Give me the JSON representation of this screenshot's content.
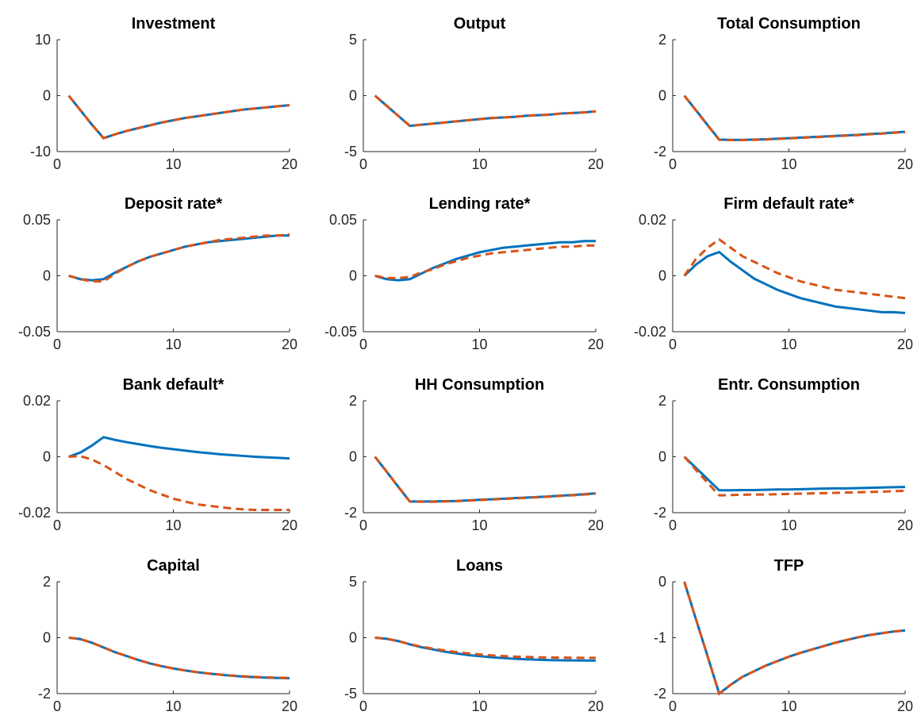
{
  "chart_data": [
    {
      "type": "line",
      "title": "Investment",
      "x": [
        1,
        2,
        3,
        4,
        5,
        6,
        7,
        8,
        9,
        10,
        11,
        12,
        13,
        14,
        15,
        16,
        17,
        18,
        19,
        20
      ],
      "xlim": [
        0,
        20
      ],
      "xticks": [
        0,
        10,
        20
      ],
      "ylim": [
        -10,
        10
      ],
      "yticks": [
        -10,
        0,
        10
      ],
      "series": [
        {
          "color": "#0072bd",
          "line_style": "solid",
          "values": [
            0,
            -2.6,
            -5.2,
            -7.6,
            -6.9,
            -6.3,
            -5.8,
            -5.3,
            -4.8,
            -4.4,
            -4.0,
            -3.7,
            -3.4,
            -3.1,
            -2.8,
            -2.5,
            -2.3,
            -2.1,
            -1.9,
            -1.7
          ]
        },
        {
          "color": "#d95319",
          "line_style": "dashed",
          "values": [
            0,
            -2.6,
            -5.2,
            -7.6,
            -6.9,
            -6.3,
            -5.8,
            -5.3,
            -4.8,
            -4.4,
            -4.0,
            -3.7,
            -3.4,
            -3.1,
            -2.8,
            -2.5,
            -2.3,
            -2.1,
            -1.9,
            -1.7
          ]
        }
      ]
    },
    {
      "type": "line",
      "title": "Output",
      "x": [
        1,
        2,
        3,
        4,
        5,
        6,
        7,
        8,
        9,
        10,
        11,
        12,
        13,
        14,
        15,
        16,
        17,
        18,
        19,
        20
      ],
      "xlim": [
        0,
        20
      ],
      "xticks": [
        0,
        10,
        20
      ],
      "ylim": [
        -5,
        5
      ],
      "yticks": [
        -5,
        0,
        5
      ],
      "series": [
        {
          "color": "#0072bd",
          "line_style": "solid",
          "values": [
            0,
            -0.9,
            -1.8,
            -2.7,
            -2.6,
            -2.5,
            -2.4,
            -2.3,
            -2.2,
            -2.1,
            -2.0,
            -1.95,
            -1.9,
            -1.8,
            -1.75,
            -1.7,
            -1.6,
            -1.55,
            -1.5,
            -1.4
          ]
        },
        {
          "color": "#d95319",
          "line_style": "dashed",
          "values": [
            0,
            -0.9,
            -1.8,
            -2.7,
            -2.6,
            -2.5,
            -2.4,
            -2.3,
            -2.2,
            -2.1,
            -2.0,
            -1.95,
            -1.9,
            -1.8,
            -1.75,
            -1.7,
            -1.6,
            -1.55,
            -1.5,
            -1.4
          ]
        }
      ]
    },
    {
      "type": "line",
      "title": "Total Consumption",
      "x": [
        1,
        2,
        3,
        4,
        5,
        6,
        7,
        8,
        9,
        10,
        11,
        12,
        13,
        14,
        15,
        16,
        17,
        18,
        19,
        20
      ],
      "xlim": [
        0,
        20
      ],
      "xticks": [
        0,
        10,
        20
      ],
      "ylim": [
        -2,
        2
      ],
      "yticks": [
        -2,
        0,
        2
      ],
      "series": [
        {
          "color": "#0072bd",
          "line_style": "solid",
          "values": [
            0,
            -0.52,
            -1.05,
            -1.57,
            -1.58,
            -1.58,
            -1.57,
            -1.56,
            -1.54,
            -1.52,
            -1.5,
            -1.48,
            -1.46,
            -1.44,
            -1.42,
            -1.4,
            -1.37,
            -1.35,
            -1.32,
            -1.29
          ]
        },
        {
          "color": "#d95319",
          "line_style": "dashed",
          "values": [
            0,
            -0.53,
            -1.06,
            -1.58,
            -1.59,
            -1.59,
            -1.58,
            -1.57,
            -1.55,
            -1.53,
            -1.51,
            -1.49,
            -1.47,
            -1.45,
            -1.43,
            -1.41,
            -1.38,
            -1.36,
            -1.33,
            -1.3
          ]
        }
      ]
    },
    {
      "type": "line",
      "title": "Deposit rate*",
      "x": [
        1,
        2,
        3,
        4,
        5,
        6,
        7,
        8,
        9,
        10,
        11,
        12,
        13,
        14,
        15,
        16,
        17,
        18,
        19,
        20
      ],
      "xlim": [
        0,
        20
      ],
      "xticks": [
        0,
        10,
        20
      ],
      "ylim": [
        -0.05,
        0.05
      ],
      "yticks": [
        -0.05,
        0,
        0.05
      ],
      "series": [
        {
          "color": "#0072bd",
          "line_style": "solid",
          "values": [
            0,
            -0.003,
            -0.004,
            -0.003,
            0.003,
            0.008,
            0.013,
            0.017,
            0.02,
            0.023,
            0.026,
            0.028,
            0.03,
            0.031,
            0.032,
            0.033,
            0.034,
            0.035,
            0.036,
            0.036
          ]
        },
        {
          "color": "#d95319",
          "line_style": "dashed",
          "values": [
            0,
            -0.003,
            -0.005,
            -0.005,
            0.002,
            0.008,
            0.013,
            0.017,
            0.02,
            0.023,
            0.026,
            0.028,
            0.03,
            0.032,
            0.033,
            0.034,
            0.035,
            0.036,
            0.036,
            0.037
          ]
        }
      ]
    },
    {
      "type": "line",
      "title": "Lending rate*",
      "x": [
        1,
        2,
        3,
        4,
        5,
        6,
        7,
        8,
        9,
        10,
        11,
        12,
        13,
        14,
        15,
        16,
        17,
        18,
        19,
        20
      ],
      "xlim": [
        0,
        20
      ],
      "xticks": [
        0,
        10,
        20
      ],
      "ylim": [
        -0.05,
        0.05
      ],
      "yticks": [
        -0.05,
        0,
        0.05
      ],
      "series": [
        {
          "color": "#0072bd",
          "line_style": "solid",
          "values": [
            0,
            -0.003,
            -0.004,
            -0.003,
            0.002,
            0.007,
            0.011,
            0.015,
            0.018,
            0.021,
            0.023,
            0.025,
            0.026,
            0.027,
            0.028,
            0.029,
            0.03,
            0.03,
            0.031,
            0.031
          ]
        },
        {
          "color": "#d95319",
          "line_style": "dashed",
          "values": [
            0,
            -0.002,
            -0.002,
            -0.001,
            0.003,
            0.006,
            0.01,
            0.013,
            0.016,
            0.018,
            0.02,
            0.021,
            0.022,
            0.023,
            0.024,
            0.025,
            0.026,
            0.026,
            0.027,
            0.027
          ]
        }
      ]
    },
    {
      "type": "line",
      "title": "Firm default rate*",
      "x": [
        1,
        2,
        3,
        4,
        5,
        6,
        7,
        8,
        9,
        10,
        11,
        12,
        13,
        14,
        15,
        16,
        17,
        18,
        19,
        20
      ],
      "xlim": [
        0,
        20
      ],
      "xticks": [
        0,
        10,
        20
      ],
      "ylim": [
        -0.02,
        0.02
      ],
      "yticks": [
        -0.02,
        0,
        0.02
      ],
      "series": [
        {
          "color": "#0072bd",
          "line_style": "solid",
          "values": [
            0,
            0.004,
            0.007,
            0.0085,
            0.005,
            0.002,
            -0.001,
            -0.003,
            -0.005,
            -0.0065,
            -0.008,
            -0.009,
            -0.01,
            -0.011,
            -0.0115,
            -0.012,
            -0.0125,
            -0.013,
            -0.013,
            -0.0133
          ]
        },
        {
          "color": "#d95319",
          "line_style": "dashed",
          "values": [
            0,
            0.006,
            0.01,
            0.013,
            0.01,
            0.007,
            0.005,
            0.003,
            0.001,
            -0.0005,
            -0.002,
            -0.003,
            -0.004,
            -0.005,
            -0.0055,
            -0.006,
            -0.0065,
            -0.007,
            -0.0075,
            -0.008
          ]
        }
      ]
    },
    {
      "type": "line",
      "title": "Bank default*",
      "x": [
        1,
        2,
        3,
        4,
        5,
        6,
        7,
        8,
        9,
        10,
        11,
        12,
        13,
        14,
        15,
        16,
        17,
        18,
        19,
        20
      ],
      "xlim": [
        0,
        20
      ],
      "xticks": [
        0,
        10,
        20
      ],
      "ylim": [
        -0.02,
        0.02
      ],
      "yticks": [
        -0.02,
        0,
        0.02
      ],
      "series": [
        {
          "color": "#0072bd",
          "line_style": "solid",
          "values": [
            0,
            0.0015,
            0.004,
            0.007,
            0.006,
            0.0052,
            0.0045,
            0.0038,
            0.0032,
            0.0027,
            0.0022,
            0.0017,
            0.0013,
            0.0009,
            0.0006,
            0.0003,
            0,
            -0.0002,
            -0.0004,
            -0.0006
          ]
        },
        {
          "color": "#d95319",
          "line_style": "dashed",
          "values": [
            0,
            0.0002,
            -0.001,
            -0.003,
            -0.0055,
            -0.008,
            -0.01,
            -0.012,
            -0.0135,
            -0.015,
            -0.016,
            -0.017,
            -0.0175,
            -0.018,
            -0.0185,
            -0.0188,
            -0.019,
            -0.019,
            -0.019,
            -0.019
          ]
        }
      ]
    },
    {
      "type": "line",
      "title": "HH Consumption",
      "x": [
        1,
        2,
        3,
        4,
        5,
        6,
        7,
        8,
        9,
        10,
        11,
        12,
        13,
        14,
        15,
        16,
        17,
        18,
        19,
        20
      ],
      "xlim": [
        0,
        20
      ],
      "xticks": [
        0,
        10,
        20
      ],
      "ylim": [
        -2,
        2
      ],
      "yticks": [
        -2,
        0,
        2
      ],
      "series": [
        {
          "color": "#0072bd",
          "line_style": "solid",
          "values": [
            0,
            -0.53,
            -1.07,
            -1.6,
            -1.6,
            -1.6,
            -1.59,
            -1.58,
            -1.56,
            -1.54,
            -1.52,
            -1.5,
            -1.48,
            -1.46,
            -1.44,
            -1.42,
            -1.39,
            -1.37,
            -1.34,
            -1.31
          ]
        },
        {
          "color": "#d95319",
          "line_style": "dashed",
          "values": [
            0,
            -0.53,
            -1.07,
            -1.6,
            -1.61,
            -1.61,
            -1.6,
            -1.59,
            -1.57,
            -1.55,
            -1.53,
            -1.51,
            -1.49,
            -1.47,
            -1.45,
            -1.43,
            -1.4,
            -1.38,
            -1.35,
            -1.32
          ]
        }
      ]
    },
    {
      "type": "line",
      "title": "Entr. Consumption",
      "x": [
        1,
        2,
        3,
        4,
        5,
        6,
        7,
        8,
        9,
        10,
        11,
        12,
        13,
        14,
        15,
        16,
        17,
        18,
        19,
        20
      ],
      "xlim": [
        0,
        20
      ],
      "xticks": [
        0,
        10,
        20
      ],
      "ylim": [
        -2,
        2
      ],
      "yticks": [
        -2,
        0,
        2
      ],
      "series": [
        {
          "color": "#0072bd",
          "line_style": "solid",
          "values": [
            0,
            -0.4,
            -0.8,
            -1.2,
            -1.2,
            -1.19,
            -1.19,
            -1.18,
            -1.17,
            -1.17,
            -1.16,
            -1.15,
            -1.14,
            -1.13,
            -1.13,
            -1.12,
            -1.11,
            -1.1,
            -1.09,
            -1.08
          ]
        },
        {
          "color": "#d95319",
          "line_style": "dashed",
          "values": [
            0,
            -0.47,
            -0.93,
            -1.38,
            -1.37,
            -1.36,
            -1.35,
            -1.35,
            -1.34,
            -1.33,
            -1.32,
            -1.31,
            -1.3,
            -1.29,
            -1.28,
            -1.27,
            -1.26,
            -1.25,
            -1.23,
            -1.22
          ]
        }
      ]
    },
    {
      "type": "line",
      "title": "Capital",
      "x": [
        1,
        2,
        3,
        4,
        5,
        6,
        7,
        8,
        9,
        10,
        11,
        12,
        13,
        14,
        15,
        16,
        17,
        18,
        19,
        20
      ],
      "xlim": [
        0,
        20
      ],
      "xticks": [
        0,
        10,
        20
      ],
      "ylim": [
        -2,
        2
      ],
      "yticks": [
        -2,
        0,
        2
      ],
      "series": [
        {
          "color": "#0072bd",
          "line_style": "solid",
          "values": [
            0,
            -0.05,
            -0.18,
            -0.35,
            -0.52,
            -0.66,
            -0.8,
            -0.92,
            -1.02,
            -1.1,
            -1.17,
            -1.23,
            -1.28,
            -1.32,
            -1.36,
            -1.39,
            -1.41,
            -1.43,
            -1.44,
            -1.45
          ]
        },
        {
          "color": "#d95319",
          "line_style": "dashed",
          "values": [
            0,
            -0.05,
            -0.18,
            -0.35,
            -0.52,
            -0.66,
            -0.8,
            -0.92,
            -1.02,
            -1.1,
            -1.17,
            -1.23,
            -1.28,
            -1.32,
            -1.35,
            -1.38,
            -1.4,
            -1.42,
            -1.43,
            -1.44
          ]
        }
      ]
    },
    {
      "type": "line",
      "title": "Loans",
      "x": [
        1,
        2,
        3,
        4,
        5,
        6,
        7,
        8,
        9,
        10,
        11,
        12,
        13,
        14,
        15,
        16,
        17,
        18,
        19,
        20
      ],
      "xlim": [
        0,
        20
      ],
      "xticks": [
        0,
        10,
        20
      ],
      "ylim": [
        -5,
        5
      ],
      "yticks": [
        -5,
        0,
        5
      ],
      "series": [
        {
          "color": "#0072bd",
          "line_style": "solid",
          "values": [
            0,
            -0.1,
            -0.3,
            -0.6,
            -0.85,
            -1.05,
            -1.25,
            -1.4,
            -1.55,
            -1.65,
            -1.75,
            -1.82,
            -1.88,
            -1.93,
            -1.97,
            -2.0,
            -2.02,
            -2.03,
            -2.04,
            -2.05
          ]
        },
        {
          "color": "#d95319",
          "line_style": "dashed",
          "values": [
            0,
            -0.1,
            -0.3,
            -0.58,
            -0.8,
            -0.98,
            -1.14,
            -1.28,
            -1.4,
            -1.5,
            -1.58,
            -1.64,
            -1.69,
            -1.72,
            -1.75,
            -1.77,
            -1.78,
            -1.79,
            -1.8,
            -1.8
          ]
        }
      ]
    },
    {
      "type": "line",
      "title": "TFP",
      "x": [
        1,
        2,
        3,
        4,
        5,
        6,
        7,
        8,
        9,
        10,
        11,
        12,
        13,
        14,
        15,
        16,
        17,
        18,
        19,
        20
      ],
      "xlim": [
        0,
        20
      ],
      "xticks": [
        0,
        10,
        20
      ],
      "ylim": [
        -2,
        0
      ],
      "yticks": [
        -2,
        -1,
        0
      ],
      "series": [
        {
          "color": "#0072bd",
          "line_style": "solid",
          "values": [
            0,
            -0.67,
            -1.33,
            -2.0,
            -1.84,
            -1.7,
            -1.6,
            -1.5,
            -1.42,
            -1.34,
            -1.27,
            -1.21,
            -1.15,
            -1.09,
            -1.04,
            -0.99,
            -0.95,
            -0.92,
            -0.89,
            -0.87
          ]
        },
        {
          "color": "#d95319",
          "line_style": "dashed",
          "values": [
            0,
            -0.67,
            -1.33,
            -2.0,
            -1.84,
            -1.7,
            -1.6,
            -1.5,
            -1.42,
            -1.34,
            -1.27,
            -1.21,
            -1.15,
            -1.09,
            -1.04,
            -0.99,
            -0.95,
            -0.92,
            -0.89,
            -0.87
          ]
        }
      ]
    }
  ]
}
